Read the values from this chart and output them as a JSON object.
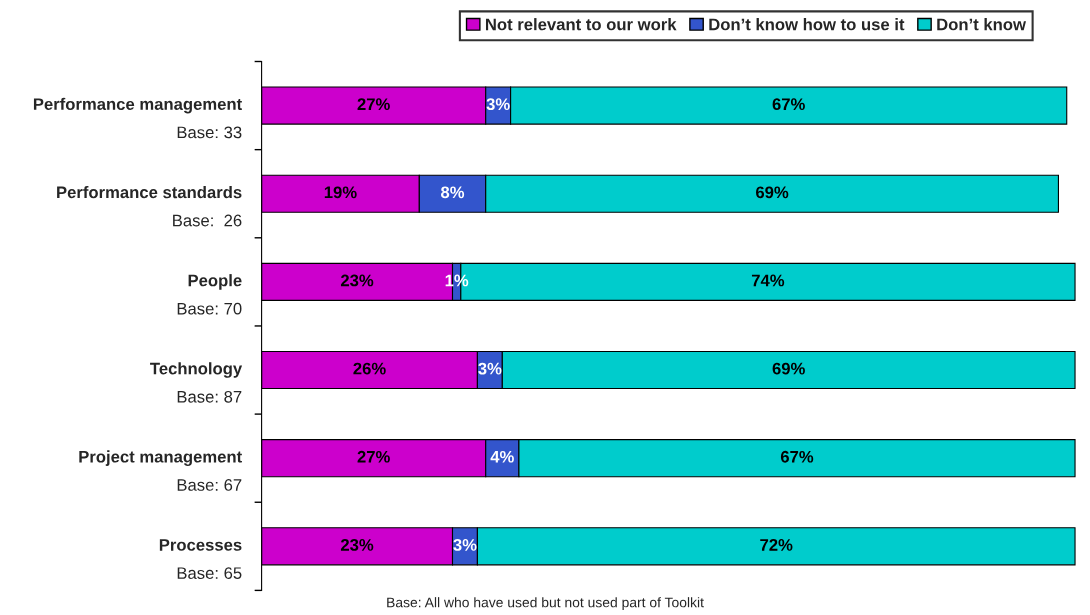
{
  "chart_data": {
    "type": "bar",
    "orientation": "horizontal",
    "stacked": true,
    "legend": "top right",
    "grid": false,
    "categories": [
      "Performance management\nBase: 33",
      "Performance standards\nBase:  26",
      "People\nBase: 70",
      "Technology\nBase: 87",
      "Project management\nBase: 67",
      "Processes\nBase: 65"
    ],
    "series": [
      {
        "name": "Not relevant to our work",
        "color": "#cc00cc",
        "values": [
          27,
          19,
          23,
          26,
          27,
          23
        ],
        "value_labels": [
          "27%",
          "19%",
          "23%",
          "26%",
          "27%",
          "23%"
        ]
      },
      {
        "name": "Don’t know how to use it",
        "color": "#3355cc",
        "values": [
          3,
          8,
          1,
          3,
          4,
          3
        ],
        "value_labels": [
          "3%",
          "8%",
          "1%",
          "3%",
          "4%",
          "3%"
        ]
      },
      {
        "name": "Don’t know",
        "color": "#00cccc",
        "values": [
          67,
          69,
          74,
          69,
          67,
          72
        ],
        "value_labels": [
          "67%",
          "69%",
          "74%",
          "69%",
          "67%",
          "72%"
        ]
      }
    ],
    "annotations": [
      "Base: All who have used but not used part of Toolkit"
    ]
  }
}
